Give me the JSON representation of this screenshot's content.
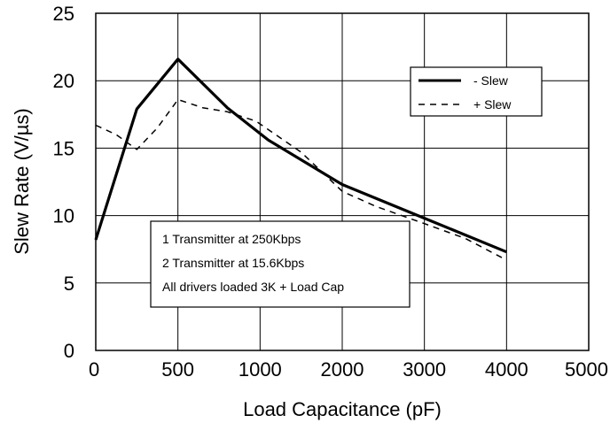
{
  "chart_data": {
    "type": "line",
    "xlabel": "Load Capacitance (pF)",
    "ylabel": "Slew Rate (V/µs)",
    "categories": [
      "0",
      "500",
      "1000",
      "2000",
      "3000",
      "4000",
      "5000"
    ],
    "ylim": [
      0,
      25
    ],
    "yticks": [
      "0",
      "5",
      "10",
      "15",
      "20",
      "25"
    ],
    "grid": true,
    "legend_position": "top-right",
    "series": [
      {
        "name": "- Slew",
        "style": "solid",
        "points": [
          [
            0,
            8.2
          ],
          [
            0.5,
            17.9
          ],
          [
            1.0,
            21.6
          ],
          [
            1.6,
            18.0
          ],
          [
            2.1,
            15.6
          ],
          [
            3.0,
            12.3
          ],
          [
            4.0,
            9.8
          ],
          [
            5.0,
            7.3
          ]
        ]
      },
      {
        "name": "+ Slew",
        "style": "dashed",
        "points": [
          [
            0,
            16.7
          ],
          [
            0.25,
            16.0
          ],
          [
            0.5,
            14.9
          ],
          [
            0.75,
            16.5
          ],
          [
            1.0,
            18.6
          ],
          [
            1.3,
            18.0
          ],
          [
            1.6,
            17.7
          ],
          [
            1.95,
            17.0
          ],
          [
            2.5,
            14.7
          ],
          [
            3.0,
            11.8
          ],
          [
            3.4,
            10.7
          ],
          [
            4.0,
            9.4
          ],
          [
            4.5,
            8.3
          ],
          [
            5.0,
            6.7
          ]
        ]
      }
    ],
    "annotation_lines": [
      "1 Transmitter at 250Kbps",
      "2 Transmitter at 15.6Kbps",
      "All drivers loaded 3K + Load Cap"
    ]
  }
}
